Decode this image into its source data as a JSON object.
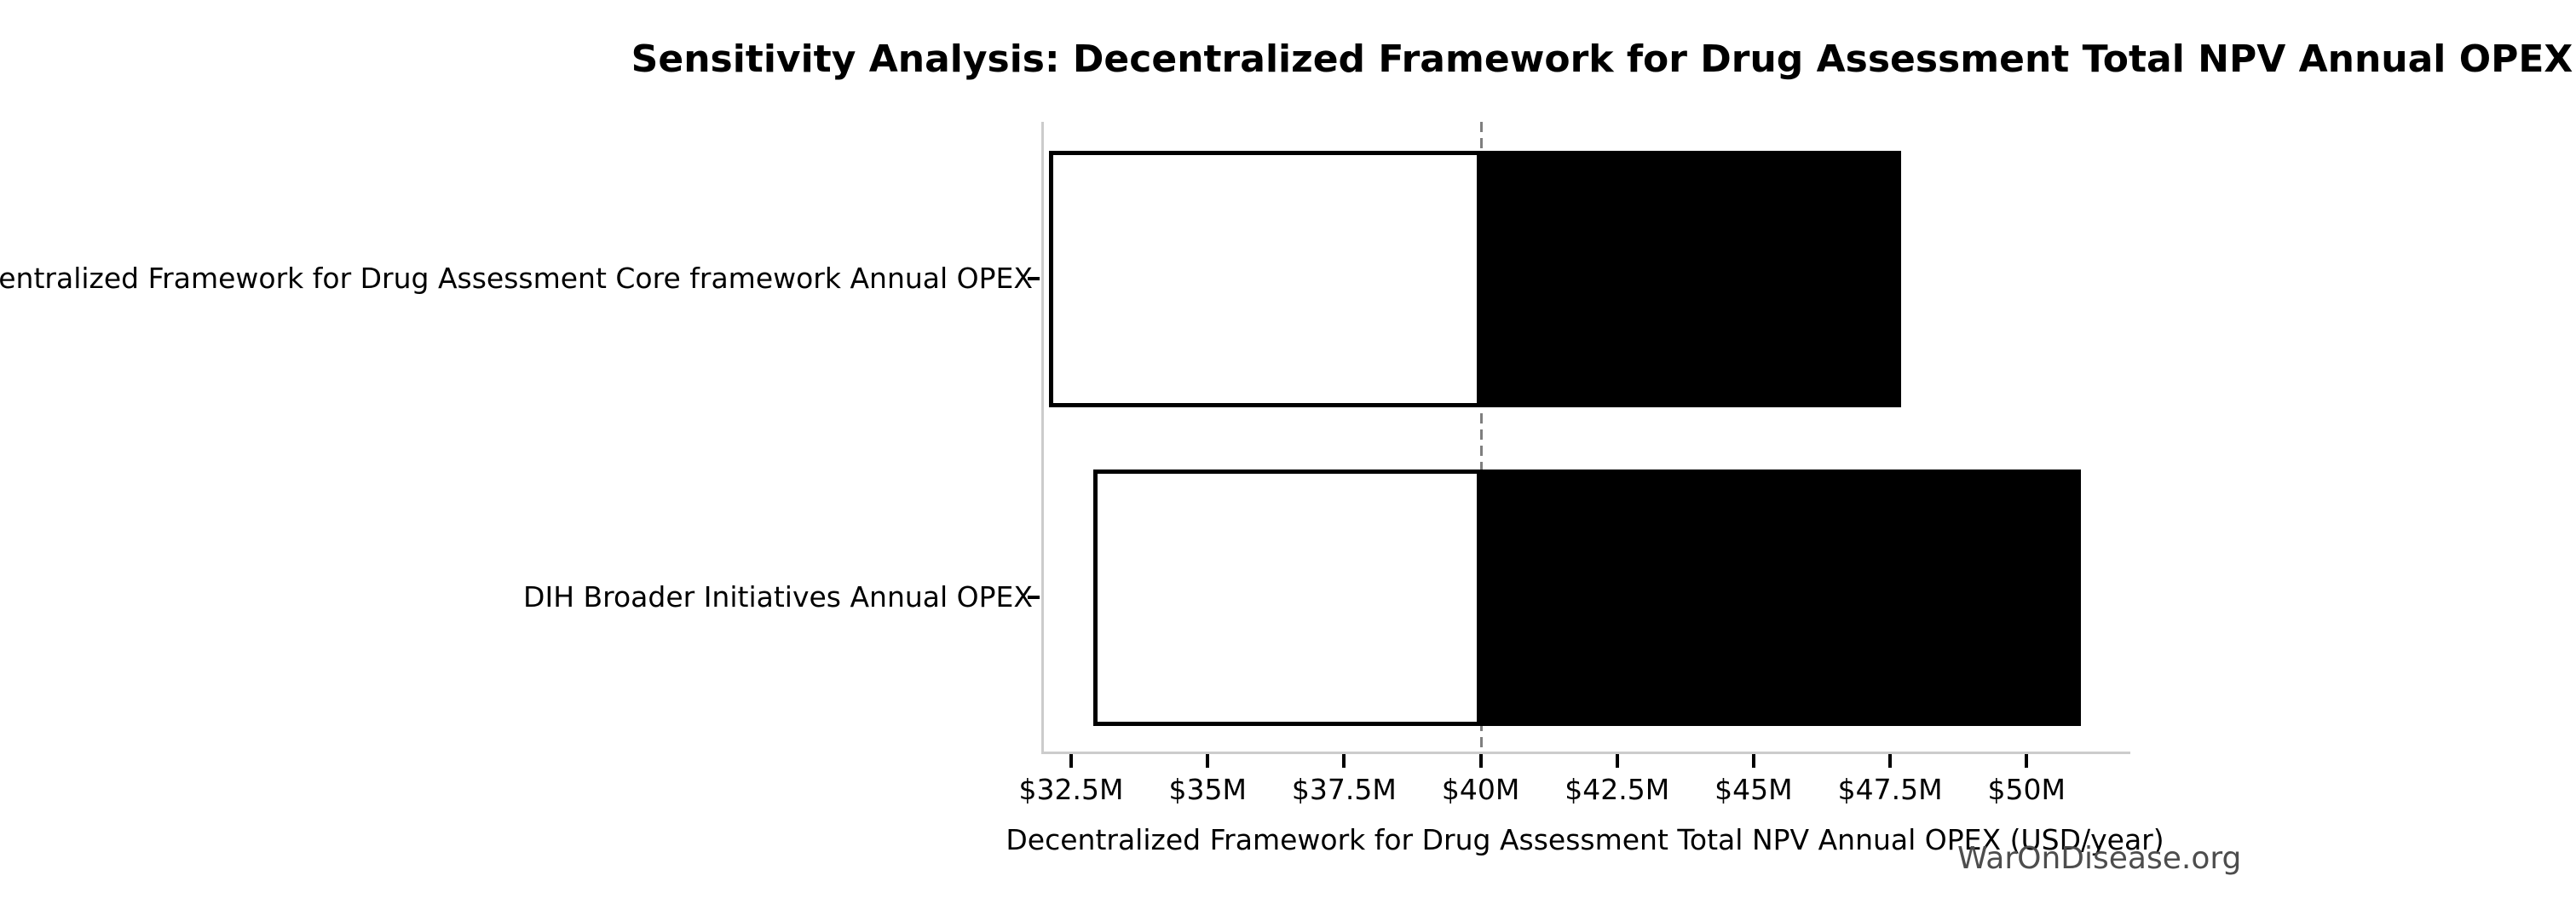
{
  "watermark": "WarOnDisease.org",
  "chart_data": {
    "type": "bar",
    "orientation": "horizontal-tornado",
    "title": "Sensitivity Analysis: Decentralized Framework for Drug Assessment Total NPV Annual OPEX",
    "xlabel": "Decentralized Framework for Drug Assessment Total NPV Annual OPEX (USD/year)",
    "ylabel": "",
    "categories": [
      "Decentralized Framework for Drug Assessment Core framework Annual OPEX",
      "DIH Broader Initiatives Annual OPEX"
    ],
    "baseline_value_musd": 40,
    "series": [
      {
        "name": "low_end_musd",
        "values": [
          32.1,
          32.9
        ]
      },
      {
        "name": "high_end_musd",
        "values": [
          47.7,
          51.0
        ]
      }
    ],
    "xtick_labels": [
      "$32.5M",
      "$35M",
      "$37.5M",
      "$40M",
      "$42.5M",
      "$45M",
      "$47.5M",
      "$50M"
    ],
    "xtick_values": [
      32.5,
      35,
      37.5,
      40,
      42.5,
      45,
      47.5,
      50
    ],
    "xlim": [
      32.0,
      51.9
    ],
    "grid": false,
    "legend": "none",
    "colors": {
      "bar_below_baseline_fill": "#ffffff",
      "bar_above_baseline_fill": "#000000",
      "bar_edge": "#000000",
      "baseline_line": "#7f7f7f",
      "axis_spine": "#cccccc",
      "tick_mark": "#000000",
      "text": "#000000",
      "watermark": "#4d4d4d"
    }
  }
}
